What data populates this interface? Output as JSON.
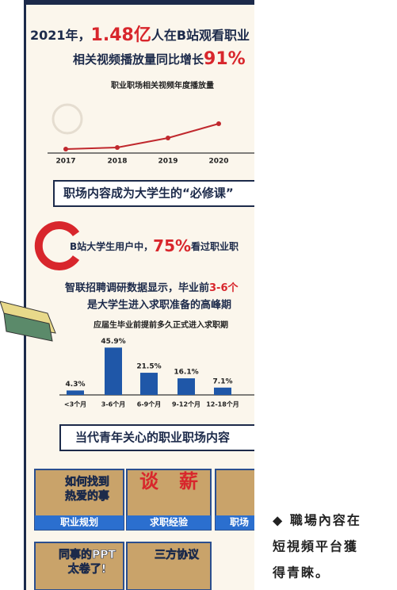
{
  "headline": {
    "year": "2021年，",
    "number": "1.48亿",
    "rest": "人在B站观看职业"
  },
  "subhead": {
    "text": "相关视频播放量同比增长",
    "number": "91%"
  },
  "chart_data": [
    {
      "type": "line",
      "title": "职业职场相关视频年度播放量",
      "categories": [
        "2017",
        "2018",
        "2019",
        "2020"
      ],
      "values": [
        5,
        7,
        19,
        37
      ],
      "ylim": [
        0,
        75
      ],
      "color": "#c0282d"
    },
    {
      "type": "bar",
      "title": "应届生毕业前提前多久正式进入求职期",
      "categories": [
        "<3个月",
        "3-6个月",
        "6-9个月",
        "9-12个月",
        "12-18个月"
      ],
      "values": [
        4.3,
        45.9,
        21.5,
        16.1,
        7.1
      ],
      "value_labels": [
        "4.3%",
        "45.9%",
        "21.5%",
        "16.1%",
        "7.1%"
      ],
      "ylim": [
        0,
        50
      ],
      "color": "#1f57a8"
    }
  ],
  "section1": "职场内容成为大学生的“必修课”",
  "stat": {
    "text": "B站大学生用户中，",
    "number": "75%",
    "rest": "看过职业职"
  },
  "survey": {
    "text": "智联招聘调研数据显示，毕业前",
    "number": "3-6个",
    "line2": "是大学生进入求职准备的高峰期"
  },
  "section2": "当代青年关心的职业职场内容",
  "tiles": [
    {
      "overlay": [
        "如何找到",
        "热爱的事"
      ],
      "label": "职业规划"
    },
    {
      "overlay": [
        "谈",
        "薪"
      ],
      "label": "求职经验"
    },
    {
      "label": "职场"
    },
    {
      "overlay": [
        "同事的PPT",
        "太卷了!"
      ]
    },
    {
      "overlay": [
        "三方协议"
      ]
    }
  ],
  "caption": [
    "◆ 職場內容在",
    "短視頻平台獲",
    "得青睞。"
  ]
}
